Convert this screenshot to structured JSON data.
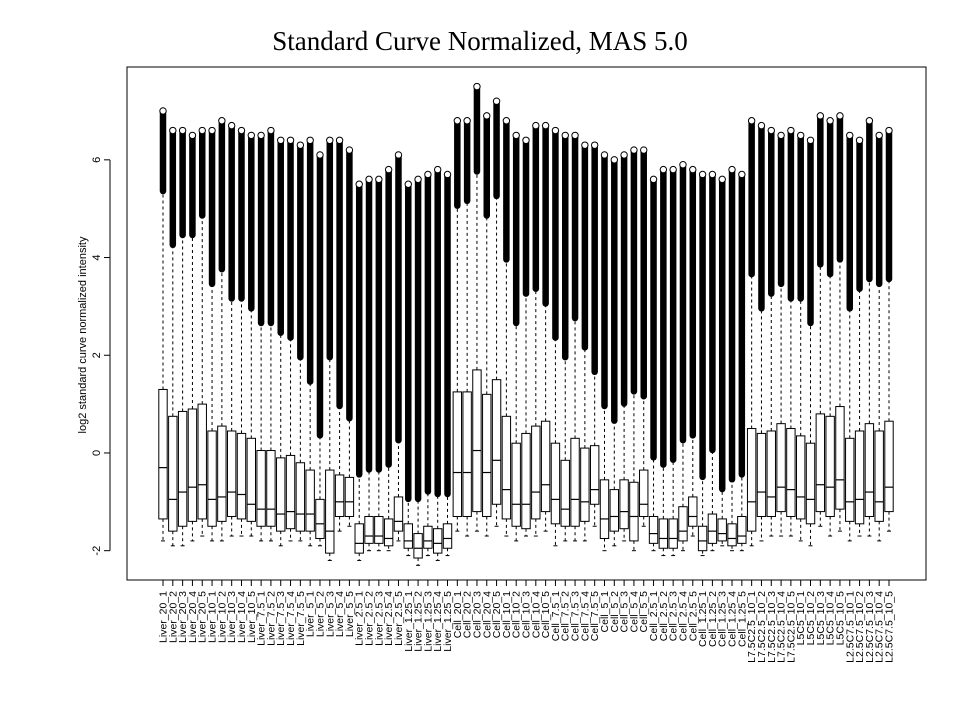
{
  "chart_data": {
    "type": "boxplot",
    "title": "Standard Curve Normalized, MAS 5.0",
    "ylabel": "log2 standard curve normalized intensity",
    "xlabel": "",
    "ylim": [
      -2.6,
      7.9
    ],
    "yticks": [
      -2,
      0,
      2,
      4,
      6
    ],
    "ytick_labels": [
      "-2",
      "0",
      "2",
      "4",
      "6"
    ],
    "grid": false,
    "categories": [
      "Liver_20_1",
      "Liver_20_2",
      "Liver_20_3",
      "Liver_20_4",
      "Liver_20_5",
      "Liver_10_1",
      "Liver_10_2",
      "Liver_10_3",
      "Liver_10_4",
      "Liver_10_5",
      "Liver_7.5_1",
      "Liver_7.5_2",
      "Liver_7.5_3",
      "Liver_7.5_4",
      "Liver_7.5_5",
      "Liver_5_1",
      "Liver_5_2",
      "Liver_5_3",
      "Liver_5_4",
      "Liver_5_5",
      "Liver_2.5_1",
      "Liver_2.5_2",
      "Liver_2.5_3",
      "Liver_2.5_4",
      "Liver_2.5_5",
      "Liver_1.25_1",
      "Liver_1.25_2",
      "Liver_1.25_3",
      "Liver_1.25_4",
      "Liver_1.25_5",
      "Cell_20_1",
      "Cell_20_2",
      "Cell_20_3",
      "Cell_20_4",
      "Cell_20_5",
      "Cell_10_1",
      "Cell_10_2",
      "Cell_10_3",
      "Cell_10_4",
      "Cell_10_5",
      "Cell_7.5_1",
      "Cell_7.5_2",
      "Cell_7.5_3",
      "Cell_7.5_4",
      "Cell_7.5_5",
      "Cell_5_1",
      "Cell_5_2",
      "Cell_5_3",
      "Cell_5_4",
      "Cell_5_5",
      "Cell_2.5_1",
      "Cell_2.5_2",
      "Cell_2.5_3",
      "Cell_2.5_4",
      "Cell_2.5_5",
      "Cell_1.25_1",
      "Cell_1.25_2",
      "Cell_1.25_3",
      "Cell_1.25_4",
      "Cell_1.25_5",
      "L7.5C2.5_10_1",
      "L7.5C2.5_10_2",
      "L7.5C2.5_10_3",
      "L7.5C2.5_10_4",
      "L7.5C2.5_10_5",
      "L5C5_10_1",
      "L5C5_10_2",
      "L5C5_10_3",
      "L5C5_10_4",
      "L5C5_10_5",
      "L2.5C7.5_10_1",
      "L2.5C7.5_10_2",
      "L2.5C7.5_10_3",
      "L2.5C7.5_10_4",
      "L2.5C7.5_10_5"
    ],
    "series": [
      {
        "values": [
          {
            "min": -1.8,
            "q1": -1.35,
            "median": -0.3,
            "q3": 1.3,
            "whisker_high": 5.3,
            "max": 7.0
          },
          {
            "min": -1.9,
            "q1": -1.6,
            "median": -0.95,
            "q3": 0.75,
            "whisker_high": 4.2,
            "max": 6.6
          },
          {
            "min": -1.9,
            "q1": -1.5,
            "median": -0.8,
            "q3": 0.85,
            "whisker_high": 4.4,
            "max": 6.6
          },
          {
            "min": -1.8,
            "q1": -1.4,
            "median": -0.7,
            "q3": 0.9,
            "whisker_high": 4.4,
            "max": 6.5
          },
          {
            "min": -1.7,
            "q1": -1.35,
            "median": -0.65,
            "q3": 1.0,
            "whisker_high": 4.8,
            "max": 6.6
          },
          {
            "min": -1.8,
            "q1": -1.5,
            "median": -0.95,
            "q3": 0.45,
            "whisker_high": 3.4,
            "max": 6.6
          },
          {
            "min": -1.8,
            "q1": -1.4,
            "median": -0.9,
            "q3": 0.55,
            "whisker_high": 3.7,
            "max": 6.8
          },
          {
            "min": -1.7,
            "q1": -1.3,
            "median": -0.8,
            "q3": 0.45,
            "whisker_high": 3.1,
            "max": 6.7
          },
          {
            "min": -1.7,
            "q1": -1.35,
            "median": -0.85,
            "q3": 0.4,
            "whisker_high": 3.1,
            "max": 6.6
          },
          {
            "min": -1.7,
            "q1": -1.4,
            "median": -1.05,
            "q3": 0.3,
            "whisker_high": 2.9,
            "max": 6.5
          },
          {
            "min": -1.8,
            "q1": -1.5,
            "median": -1.15,
            "q3": 0.05,
            "whisker_high": 2.6,
            "max": 6.5
          },
          {
            "min": -1.8,
            "q1": -1.5,
            "median": -1.15,
            "q3": 0.05,
            "whisker_high": 2.6,
            "max": 6.6
          },
          {
            "min": -1.9,
            "q1": -1.6,
            "median": -1.25,
            "q3": -0.1,
            "whisker_high": 2.4,
            "max": 6.4
          },
          {
            "min": -1.8,
            "q1": -1.55,
            "median": -1.2,
            "q3": -0.05,
            "whisker_high": 2.3,
            "max": 6.4
          },
          {
            "min": -1.8,
            "q1": -1.6,
            "median": -1.25,
            "q3": -0.2,
            "whisker_high": 1.9,
            "max": 6.3
          },
          {
            "min": -1.9,
            "q1": -1.6,
            "median": -1.25,
            "q3": -0.35,
            "whisker_high": 1.4,
            "max": 6.4
          },
          {
            "min": -1.9,
            "q1": -1.75,
            "median": -1.45,
            "q3": -0.95,
            "whisker_high": 0.3,
            "max": 6.1
          },
          {
            "min": -2.2,
            "q1": -2.05,
            "median": -1.6,
            "q3": -0.35,
            "whisker_high": 1.9,
            "max": 6.4
          },
          {
            "min": -1.6,
            "q1": -1.3,
            "median": -1.0,
            "q3": -0.45,
            "whisker_high": 0.9,
            "max": 6.4
          },
          {
            "min": -1.5,
            "q1": -1.3,
            "median": -1.0,
            "q3": -0.5,
            "whisker_high": 0.65,
            "max": 6.2
          },
          {
            "min": -2.2,
            "q1": -2.05,
            "median": -1.85,
            "q3": -1.45,
            "whisker_high": -0.5,
            "max": 5.5
          },
          {
            "min": -2.0,
            "q1": -1.85,
            "median": -1.7,
            "q3": -1.3,
            "whisker_high": -0.4,
            "max": 5.6
          },
          {
            "min": -2.0,
            "q1": -1.85,
            "median": -1.7,
            "q3": -1.3,
            "whisker_high": -0.4,
            "max": 5.6
          },
          {
            "min": -2.0,
            "q1": -1.9,
            "median": -1.75,
            "q3": -1.35,
            "whisker_high": -0.3,
            "max": 5.8
          },
          {
            "min": -1.8,
            "q1": -1.6,
            "median": -1.4,
            "q3": -0.9,
            "whisker_high": 0.2,
            "max": 6.1
          },
          {
            "min": -2.1,
            "q1": -1.95,
            "median": -1.8,
            "q3": -1.45,
            "whisker_high": -1.0,
            "max": 5.5
          },
          {
            "min": -2.3,
            "q1": -2.15,
            "median": -1.95,
            "q3": -1.65,
            "whisker_high": -1.0,
            "max": 5.6
          },
          {
            "min": -2.1,
            "q1": -1.95,
            "median": -1.8,
            "q3": -1.5,
            "whisker_high": -0.85,
            "max": 5.7
          },
          {
            "min": -2.2,
            "q1": -2.05,
            "median": -1.85,
            "q3": -1.55,
            "whisker_high": -0.9,
            "max": 5.8
          },
          {
            "min": -2.1,
            "q1": -1.95,
            "median": -1.75,
            "q3": -1.45,
            "whisker_high": -0.9,
            "max": 5.7
          },
          {
            "min": -1.6,
            "q1": -1.3,
            "median": -0.4,
            "q3": 1.25,
            "whisker_high": 5.0,
            "max": 6.8
          },
          {
            "min": -1.7,
            "q1": -1.3,
            "median": -0.4,
            "q3": 1.25,
            "whisker_high": 5.1,
            "max": 6.8
          },
          {
            "min": -1.6,
            "q1": -1.2,
            "median": 0.05,
            "q3": 1.7,
            "whisker_high": 5.7,
            "max": 7.5
          },
          {
            "min": -1.7,
            "q1": -1.3,
            "median": -0.4,
            "q3": 1.2,
            "whisker_high": 4.8,
            "max": 6.9
          },
          {
            "min": -1.5,
            "q1": -1.05,
            "median": -0.15,
            "q3": 1.5,
            "whisker_high": 5.2,
            "max": 7.2
          },
          {
            "min": -1.7,
            "q1": -1.35,
            "median": -0.75,
            "q3": 0.75,
            "whisker_high": 3.9,
            "max": 6.8
          },
          {
            "min": -1.8,
            "q1": -1.5,
            "median": -1.05,
            "q3": 0.2,
            "whisker_high": 2.6,
            "max": 6.5
          },
          {
            "min": -1.7,
            "q1": -1.55,
            "median": -1.05,
            "q3": 0.4,
            "whisker_high": 3.2,
            "max": 6.4
          },
          {
            "min": -1.7,
            "q1": -1.35,
            "median": -0.8,
            "q3": 0.55,
            "whisker_high": 3.3,
            "max": 6.7
          },
          {
            "min": -1.6,
            "q1": -1.2,
            "median": -0.65,
            "q3": 0.65,
            "whisker_high": 3.0,
            "max": 6.7
          },
          {
            "min": -1.9,
            "q1": -1.45,
            "median": -0.95,
            "q3": 0.2,
            "whisker_high": 2.3,
            "max": 6.6
          },
          {
            "min": -1.8,
            "q1": -1.5,
            "median": -1.15,
            "q3": -0.15,
            "whisker_high": 1.9,
            "max": 6.5
          },
          {
            "min": -1.8,
            "q1": -1.5,
            "median": -0.95,
            "q3": 0.3,
            "whisker_high": 2.7,
            "max": 6.5
          },
          {
            "min": -1.8,
            "q1": -1.4,
            "median": -1.0,
            "q3": 0.1,
            "whisker_high": 2.1,
            "max": 6.3
          },
          {
            "min": -1.5,
            "q1": -1.05,
            "median": -0.75,
            "q3": 0.15,
            "whisker_high": 1.6,
            "max": 6.3
          },
          {
            "min": -2.0,
            "q1": -1.75,
            "median": -1.35,
            "q3": -0.55,
            "whisker_high": 0.9,
            "max": 6.1
          },
          {
            "min": -1.9,
            "q1": -1.6,
            "median": -1.3,
            "q3": -0.75,
            "whisker_high": 0.6,
            "max": 6.0
          },
          {
            "min": -1.8,
            "q1": -1.55,
            "median": -1.2,
            "q3": -0.55,
            "whisker_high": 0.95,
            "max": 6.1
          },
          {
            "min": -2.0,
            "q1": -1.8,
            "median": -1.3,
            "q3": -0.6,
            "whisker_high": 1.2,
            "max": 6.2
          },
          {
            "min": -1.5,
            "q1": -1.3,
            "median": -1.05,
            "q3": -0.35,
            "whisker_high": 1.1,
            "max": 6.2
          },
          {
            "min": -2.0,
            "q1": -1.85,
            "median": -1.65,
            "q3": -1.3,
            "whisker_high": -0.15,
            "max": 5.6
          },
          {
            "min": -2.1,
            "q1": -1.95,
            "median": -1.75,
            "q3": -1.35,
            "whisker_high": -0.3,
            "max": 5.8
          },
          {
            "min": -2.1,
            "q1": -1.95,
            "median": -1.75,
            "q3": -1.35,
            "whisker_high": -0.2,
            "max": 5.8
          },
          {
            "min": -2.0,
            "q1": -1.8,
            "median": -1.6,
            "q3": -1.1,
            "whisker_high": 0.2,
            "max": 5.9
          },
          {
            "min": -1.7,
            "q1": -1.5,
            "median": -1.3,
            "q3": -0.9,
            "whisker_high": 0.3,
            "max": 5.8
          },
          {
            "min": -2.1,
            "q1": -2.0,
            "median": -1.8,
            "q3": -1.5,
            "whisker_high": -0.55,
            "max": 5.7
          },
          {
            "min": -2.0,
            "q1": -1.85,
            "median": -1.6,
            "q3": -1.25,
            "whisker_high": 0.0,
            "max": 5.7
          },
          {
            "min": -1.9,
            "q1": -1.8,
            "median": -1.65,
            "q3": -1.35,
            "whisker_high": -0.8,
            "max": 5.6
          },
          {
            "min": -2.0,
            "q1": -1.9,
            "median": -1.75,
            "q3": -1.45,
            "whisker_high": -0.6,
            "max": 5.8
          },
          {
            "min": -2.0,
            "q1": -1.85,
            "median": -1.7,
            "q3": -1.3,
            "whisker_high": -0.5,
            "max": 5.7
          },
          {
            "min": -1.9,
            "q1": -1.6,
            "median": -1.0,
            "q3": 0.5,
            "whisker_high": 3.6,
            "max": 6.8
          },
          {
            "min": -1.8,
            "q1": -1.3,
            "median": -0.8,
            "q3": 0.4,
            "whisker_high": 2.9,
            "max": 6.7
          },
          {
            "min": -1.7,
            "q1": -1.3,
            "median": -0.9,
            "q3": 0.45,
            "whisker_high": 3.2,
            "max": 6.6
          },
          {
            "min": -1.7,
            "q1": -1.2,
            "median": -0.7,
            "q3": 0.6,
            "whisker_high": 3.4,
            "max": 6.5
          },
          {
            "min": -1.7,
            "q1": -1.3,
            "median": -0.75,
            "q3": 0.5,
            "whisker_high": 3.1,
            "max": 6.6
          },
          {
            "min": -1.8,
            "q1": -1.35,
            "median": -0.9,
            "q3": 0.35,
            "whisker_high": 3.1,
            "max": 6.5
          },
          {
            "min": -1.9,
            "q1": -1.45,
            "median": -0.95,
            "q3": 0.2,
            "whisker_high": 2.6,
            "max": 6.4
          },
          {
            "min": -1.5,
            "q1": -1.2,
            "median": -0.65,
            "q3": 0.8,
            "whisker_high": 3.8,
            "max": 6.9
          },
          {
            "min": -1.7,
            "q1": -1.3,
            "median": -0.7,
            "q3": 0.75,
            "whisker_high": 3.6,
            "max": 6.8
          },
          {
            "min": -1.6,
            "q1": -1.15,
            "median": -0.55,
            "q3": 0.95,
            "whisker_high": 3.9,
            "max": 6.9
          },
          {
            "min": -1.8,
            "q1": -1.4,
            "median": -1.0,
            "q3": 0.3,
            "whisker_high": 2.9,
            "max": 6.5
          },
          {
            "min": -1.7,
            "q1": -1.45,
            "median": -0.95,
            "q3": 0.45,
            "whisker_high": 3.3,
            "max": 6.4
          },
          {
            "min": -1.7,
            "q1": -1.3,
            "median": -0.8,
            "q3": 0.6,
            "whisker_high": 3.5,
            "max": 6.8
          },
          {
            "min": -1.8,
            "q1": -1.4,
            "median": -1.0,
            "q3": 0.45,
            "whisker_high": 3.4,
            "max": 6.5
          },
          {
            "min": -1.6,
            "q1": -1.2,
            "median": -0.7,
            "q3": 0.65,
            "whisker_high": 3.5,
            "max": 6.6
          }
        ]
      }
    ]
  }
}
